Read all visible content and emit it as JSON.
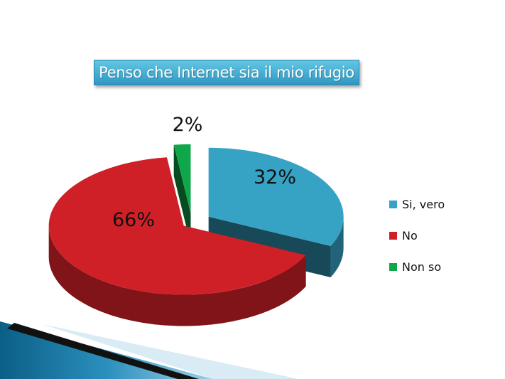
{
  "chart_data": {
    "type": "pie",
    "title": "Penso che Internet sia il mio rifugio",
    "categories": [
      "Si, vero",
      "No",
      "Non so"
    ],
    "values": [
      32,
      66,
      2
    ],
    "data_labels": [
      "32%",
      "66%",
      "2%"
    ],
    "colors": [
      "#36a2c4",
      "#d02027",
      "#10a64a"
    ],
    "legend_placement": "right",
    "exploded": true,
    "three_d": true
  }
}
